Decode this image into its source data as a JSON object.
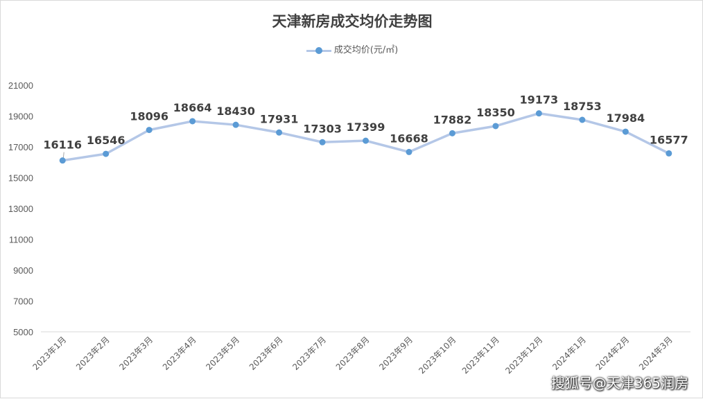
{
  "chart_data": {
    "type": "line",
    "title": "天津新房成交均价走势图",
    "categories": [
      "2023年1月",
      "2023年2月",
      "2023年3月",
      "2023年4月",
      "2023年5月",
      "2023年6月",
      "2023年7月",
      "2023年8月",
      "2023年9月",
      "2023年10月",
      "2023年11月",
      "2023年12月",
      "2024年1月",
      "2024年2月",
      "2024年3月"
    ],
    "series": [
      {
        "name": "成交均价(元/㎡)",
        "values": [
          16116,
          16546,
          18096,
          18664,
          18430,
          17931,
          17303,
          17399,
          16668,
          17882,
          18350,
          19173,
          18753,
          17984,
          16577
        ],
        "data_labels": [
          "16116",
          "16546",
          "18096",
          "18664",
          "18430",
          "17931",
          "17303",
          "17399",
          "16668",
          "17882",
          "18350",
          "19173",
          "18753",
          "17984",
          "16577"
        ]
      }
    ],
    "yticks": [
      "21000",
      "19000",
      "17000",
      "15000",
      "13000",
      "11000",
      "9000",
      "7000",
      "5000"
    ],
    "ylim": [
      5000,
      21000
    ],
    "grid": false,
    "legend_position": "top-center",
    "colors": {
      "line": "#b4c7e7",
      "marker": "#5b9bd5"
    }
  },
  "watermark": "搜狐号@天津365润房"
}
